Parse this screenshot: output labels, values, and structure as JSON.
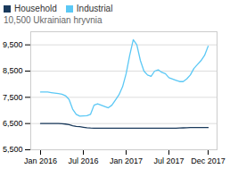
{
  "chart_data": {
    "type": "line",
    "subtitle": "10,500 Ukrainian hryvnia",
    "categories": [
      "Jan 2016",
      null,
      null,
      null,
      null,
      null,
      null,
      null,
      null,
      null,
      null,
      null,
      "Jul 2016",
      null,
      null,
      null,
      null,
      null,
      null,
      null,
      null,
      null,
      null,
      null,
      "Jan 2017",
      null,
      null,
      null,
      null,
      null,
      null,
      null,
      null,
      null,
      null,
      null,
      "Jul 2017",
      null,
      null,
      null,
      null,
      null,
      null,
      null,
      null,
      null,
      null,
      "Dec 2017"
    ],
    "series": [
      {
        "name": "Household",
        "color": "#1a3a5c",
        "values": [
          6500,
          6500,
          6500,
          6500,
          6500,
          6500,
          6490,
          6480,
          6460,
          6420,
          6390,
          6380,
          6360,
          6340,
          6330,
          6325,
          6325,
          6325,
          6325,
          6325,
          6325,
          6325,
          6325,
          6325,
          6325,
          6325,
          6325,
          6325,
          6325,
          6325,
          6325,
          6325,
          6325,
          6325,
          6325,
          6325,
          6325,
          6325,
          6325,
          6330,
          6335,
          6340,
          6345,
          6345,
          6345,
          6345,
          6345,
          6345
        ]
      },
      {
        "name": "Industrial",
        "color": "#5bc8f5",
        "values": [
          7700,
          7700,
          7700,
          7680,
          7660,
          7640,
          7620,
          7560,
          7420,
          7050,
          6850,
          6780,
          6790,
          6800,
          6850,
          7200,
          7250,
          7200,
          7150,
          7100,
          7200,
          7400,
          7600,
          7900,
          8400,
          9100,
          9700,
          9500,
          8900,
          8500,
          8350,
          8300,
          8500,
          8550,
          8450,
          8400,
          8250,
          8200,
          8150,
          8100,
          8100,
          8200,
          8350,
          8600,
          8750,
          8900,
          9100,
          9450
        ]
      }
    ],
    "ylim": [
      5500,
      10000
    ],
    "yticks": [
      {
        "value": 5500,
        "label": "5,500"
      },
      {
        "value": 6500,
        "label": "6,500"
      },
      {
        "value": 7500,
        "label": "7,500"
      },
      {
        "value": 8500,
        "label": "8,500"
      },
      {
        "value": 9500,
        "label": "9,500"
      }
    ],
    "grid": true,
    "legend": "upper left"
  }
}
